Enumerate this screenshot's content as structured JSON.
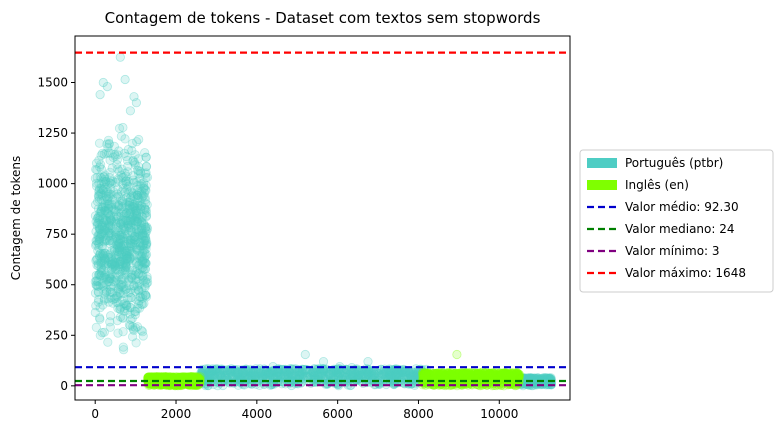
{
  "chart_data": {
    "type": "scatter",
    "title": "Contagem de tokens - Dataset com textos sem stopwords",
    "xlabel": "",
    "ylabel": "Contagem de tokens",
    "xlim": [
      -500,
      11750
    ],
    "ylim": [
      -70,
      1730
    ],
    "xticks": [
      0,
      2000,
      4000,
      6000,
      8000,
      10000
    ],
    "xtick_labels": [
      "0",
      "2000",
      "4000",
      "6000",
      "8000",
      "10000"
    ],
    "yticks": [
      0,
      250,
      500,
      750,
      1000,
      1250,
      1500
    ],
    "ytick_labels": [
      "0",
      "250",
      "500",
      "750",
      "1000",
      "1250",
      "1500"
    ],
    "grid": false,
    "legend_position": "right, outside plot",
    "series": [
      {
        "name": "Português (ptbr)",
        "color": "#4ecdc4",
        "point_style": "translucent circles",
        "regions": [
          {
            "x_range": [
              0,
              1300
            ],
            "y_range": [
              90,
              1300
            ],
            "density": "very high"
          },
          {
            "x_range": [
              2600,
              8200
            ],
            "y_range": [
              0,
              85
            ],
            "density": "very high"
          },
          {
            "x_range": [
              10500,
              11300
            ],
            "y_range": [
              0,
              40
            ],
            "density": "high"
          }
        ],
        "outliers": [
          {
            "x": 620,
            "y": 1625
          },
          {
            "x": 740,
            "y": 1515
          },
          {
            "x": 200,
            "y": 1500
          },
          {
            "x": 300,
            "y": 1480
          },
          {
            "x": 120,
            "y": 1440
          },
          {
            "x": 960,
            "y": 1430
          },
          {
            "x": 1020,
            "y": 1400
          },
          {
            "x": 870,
            "y": 1360
          },
          {
            "x": 5200,
            "y": 155
          },
          {
            "x": 5650,
            "y": 120
          },
          {
            "x": 6750,
            "y": 120
          },
          {
            "x": 6050,
            "y": 95
          },
          {
            "x": 6350,
            "y": 90
          },
          {
            "x": 4400,
            "y": 95
          }
        ]
      },
      {
        "name": "Inglês (en)",
        "color": "#7fff00",
        "point_style": "translucent circles",
        "regions": [
          {
            "x_range": [
              1300,
              2600
            ],
            "y_range": [
              0,
              45
            ],
            "density": "very high"
          },
          {
            "x_range": [
              8100,
              10500
            ],
            "y_range": [
              0,
              65
            ],
            "density": "very high"
          }
        ],
        "outliers": [
          {
            "x": 8950,
            "y": 155
          },
          {
            "x": 9600,
            "y": 70
          }
        ]
      }
    ],
    "reference_lines": [
      {
        "name": "Valor médio: 92.30",
        "y": 92.3,
        "color": "#0000cc",
        "style": "dashed"
      },
      {
        "name": "Valor mediano: 24",
        "y": 24,
        "color": "#008000",
        "style": "dashed"
      },
      {
        "name": "Valor mínimo: 3",
        "y": 3,
        "color": "#800080",
        "style": "dashed"
      },
      {
        "name": "Valor máximo: 1648",
        "y": 1648,
        "color": "#ff0000",
        "style": "dashed"
      }
    ]
  }
}
